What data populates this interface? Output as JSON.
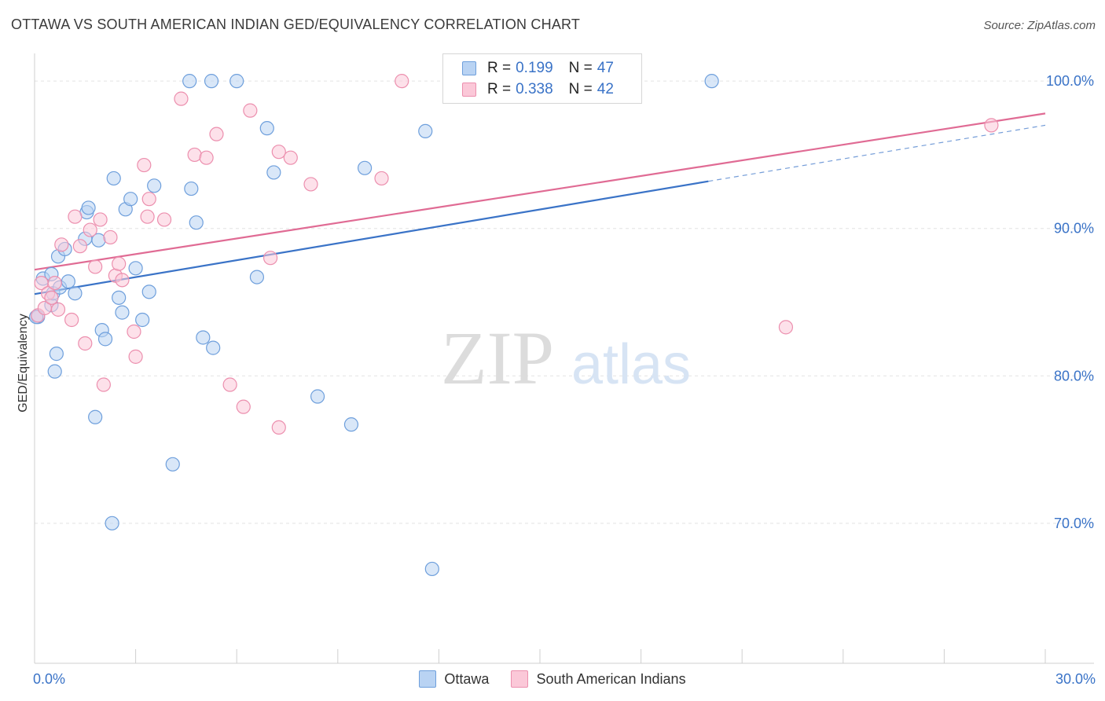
{
  "title": "OTTAWA VS SOUTH AMERICAN INDIAN GED/EQUIVALENCY CORRELATION CHART",
  "source": "Source: ZipAtlas.com",
  "watermark": {
    "zip": "ZIP",
    "atlas": "atlas"
  },
  "legend_top": {
    "r_label": "R =",
    "n_label": "N =",
    "series": [
      {
        "r": "0.199",
        "n": "47"
      },
      {
        "r": "0.338",
        "n": "42"
      }
    ]
  },
  "legend_bottom": [
    "Ottawa",
    "South American Indians"
  ],
  "colors": {
    "blue_fill": "#b9d3f3",
    "blue_stroke": "#6e9fdc",
    "blue_line": "#3a73c7",
    "pink_fill": "#fbc8d8",
    "pink_stroke": "#ec8fae",
    "pink_line": "#e06b94",
    "tick_label": "#3a73c7",
    "grid": "#e4e4e4"
  },
  "chart_data": {
    "type": "scatter",
    "title": "OTTAWA VS SOUTH AMERICAN INDIAN GED/EQUIVALENCY CORRELATION CHART",
    "xlabel": "",
    "ylabel": "GED/Equivalency",
    "xlim": [
      0,
      30
    ],
    "ylim": [
      60.5,
      101.5
    ],
    "x_tick_labels": [
      {
        "value": 0,
        "label": "0.0%"
      },
      {
        "value": 30,
        "label": "30.0%"
      }
    ],
    "y_tick_labels": [
      {
        "value": 100,
        "label": "100.0%"
      },
      {
        "value": 90,
        "label": "90.0%"
      },
      {
        "value": 80,
        "label": "80.0%"
      },
      {
        "value": 70,
        "label": "70.0%"
      }
    ],
    "x_minor_ticks": [
      3,
      6,
      9,
      12,
      15,
      18,
      21,
      24,
      27,
      30
    ],
    "series": [
      {
        "name": "Ottawa",
        "points": [
          [
            0.1,
            84.0
          ],
          [
            0.25,
            86.6
          ],
          [
            0.5,
            84.8
          ],
          [
            0.5,
            86.9
          ],
          [
            0.55,
            85.6
          ],
          [
            0.6,
            80.3
          ],
          [
            0.65,
            81.5
          ],
          [
            0.7,
            88.1
          ],
          [
            0.75,
            86.0
          ],
          [
            0.9,
            88.6
          ],
          [
            1.0,
            86.4
          ],
          [
            1.2,
            85.6
          ],
          [
            1.5,
            89.3
          ],
          [
            1.55,
            91.1
          ],
          [
            1.6,
            91.4
          ],
          [
            1.8,
            77.2
          ],
          [
            1.9,
            89.2
          ],
          [
            2.0,
            83.1
          ],
          [
            2.1,
            82.5
          ],
          [
            2.3,
            70.0
          ],
          [
            2.35,
            93.4
          ],
          [
            2.5,
            85.3
          ],
          [
            2.6,
            84.3
          ],
          [
            2.7,
            91.3
          ],
          [
            2.85,
            92.0
          ],
          [
            3.0,
            87.3
          ],
          [
            3.2,
            83.8
          ],
          [
            3.4,
            85.7
          ],
          [
            3.55,
            92.9
          ],
          [
            4.1,
            74.0
          ],
          [
            4.6,
            100.0
          ],
          [
            4.65,
            92.7
          ],
          [
            4.8,
            90.4
          ],
          [
            5.0,
            82.6
          ],
          [
            5.3,
            81.9
          ],
          [
            5.25,
            100.0
          ],
          [
            6.0,
            100.0
          ],
          [
            6.6,
            86.7
          ],
          [
            6.9,
            96.8
          ],
          [
            7.1,
            93.8
          ],
          [
            8.4,
            78.6
          ],
          [
            9.4,
            76.7
          ],
          [
            9.8,
            94.1
          ],
          [
            11.6,
            96.6
          ],
          [
            11.8,
            66.9
          ],
          [
            20.1,
            100.0
          ],
          [
            0.05,
            84.0
          ]
        ],
        "trend": {
          "x0": 0,
          "y0": 85.55,
          "x1": 20.0,
          "y1": 93.2,
          "dashed_to_x": 30,
          "dashed_to_y": 97.0
        }
      },
      {
        "name": "South American Indians",
        "points": [
          [
            0.1,
            84.1
          ],
          [
            0.2,
            86.3
          ],
          [
            0.3,
            84.6
          ],
          [
            0.4,
            85.6
          ],
          [
            0.5,
            85.3
          ],
          [
            0.6,
            86.3
          ],
          [
            0.7,
            84.5
          ],
          [
            0.8,
            88.9
          ],
          [
            1.1,
            83.8
          ],
          [
            1.2,
            90.8
          ],
          [
            1.35,
            88.8
          ],
          [
            1.5,
            82.2
          ],
          [
            1.65,
            89.9
          ],
          [
            1.8,
            87.4
          ],
          [
            1.95,
            90.6
          ],
          [
            2.05,
            79.4
          ],
          [
            2.25,
            89.4
          ],
          [
            2.4,
            86.8
          ],
          [
            2.5,
            87.6
          ],
          [
            2.6,
            86.5
          ],
          [
            2.95,
            83.0
          ],
          [
            3.0,
            81.3
          ],
          [
            3.25,
            94.3
          ],
          [
            3.35,
            90.8
          ],
          [
            3.4,
            92.0
          ],
          [
            3.85,
            90.6
          ],
          [
            4.35,
            98.8
          ],
          [
            4.75,
            95.0
          ],
          [
            5.1,
            94.8
          ],
          [
            5.4,
            96.4
          ],
          [
            5.8,
            79.4
          ],
          [
            6.2,
            77.9
          ],
          [
            6.4,
            98.0
          ],
          [
            7.0,
            88.0
          ],
          [
            7.25,
            95.2
          ],
          [
            7.25,
            76.5
          ],
          [
            7.6,
            94.8
          ],
          [
            8.2,
            93.0
          ],
          [
            10.3,
            93.4
          ],
          [
            10.9,
            100.0
          ],
          [
            22.3,
            83.3
          ],
          [
            28.4,
            97.0
          ]
        ],
        "trend": {
          "x0": 0,
          "y0": 87.2,
          "x1": 30,
          "y1": 97.8
        }
      }
    ]
  }
}
